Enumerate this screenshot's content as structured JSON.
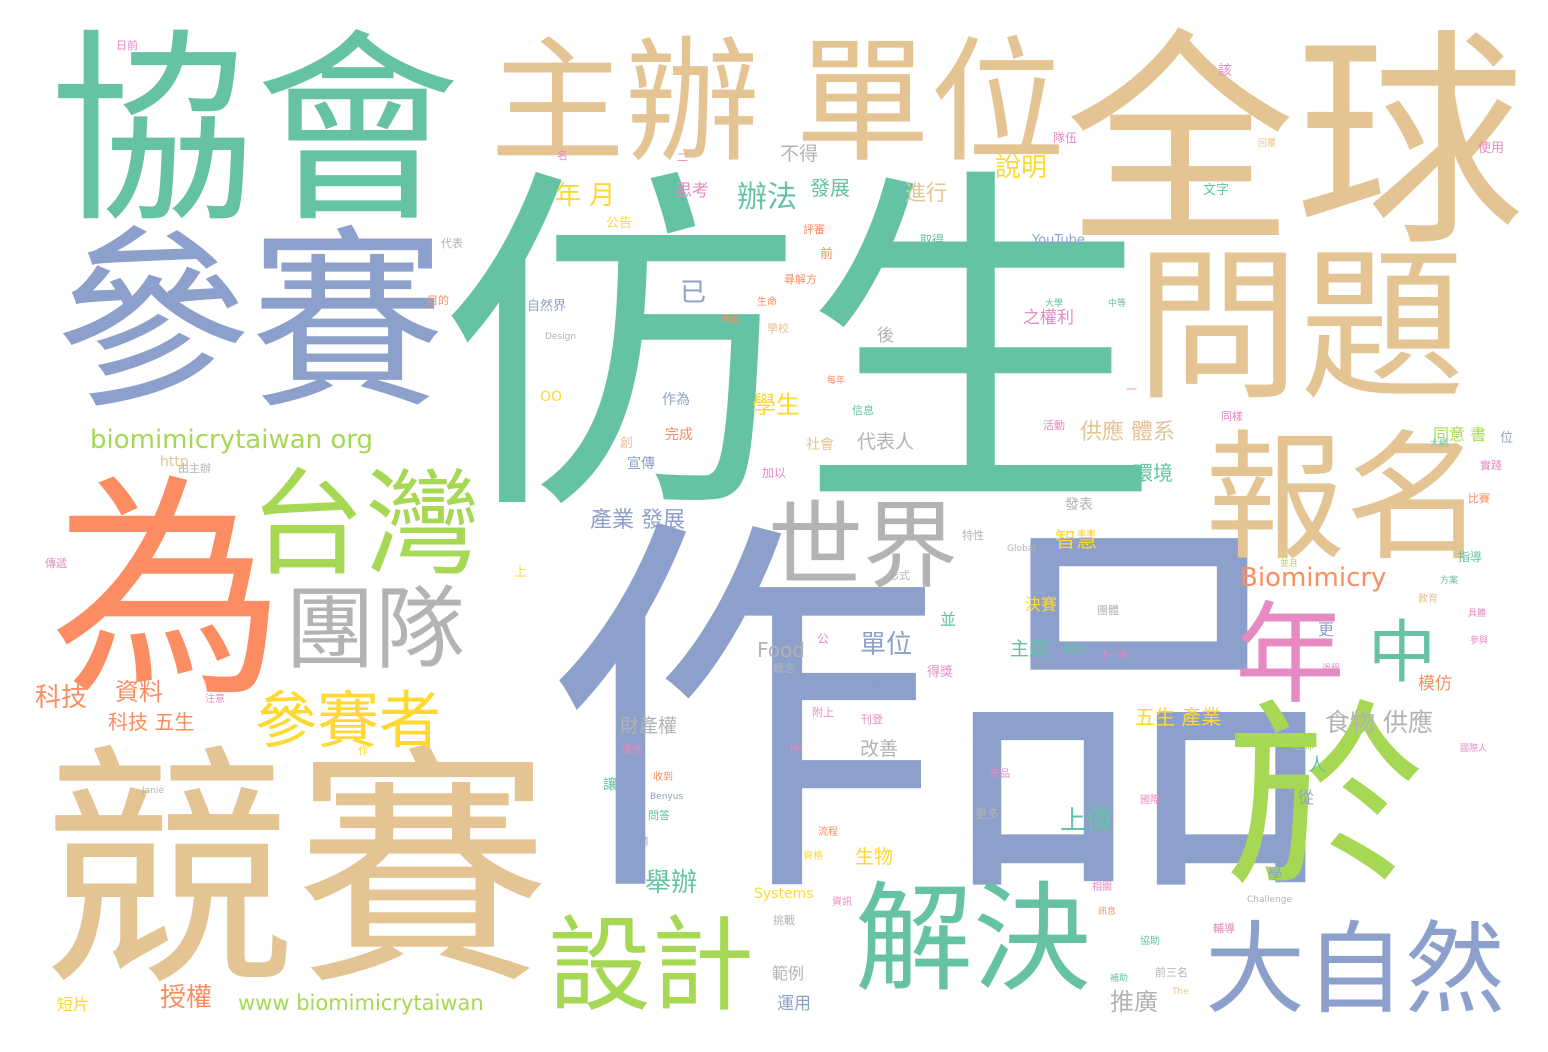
{
  "palette": {
    "green": "#66c2a5",
    "tan": "#e5c494",
    "blue": "#8da0cb",
    "orange": "#fc8d62",
    "lime": "#a6d854",
    "pink": "#e78ac3",
    "yellow": "#ffd92f",
    "gray": "#b3b3b3"
  },
  "words": [
    {
      "text": "仿生",
      "color": "green"
    },
    {
      "text": "作品",
      "color": "blue"
    },
    {
      "text": "全球",
      "color": "tan"
    },
    {
      "text": "協會",
      "color": "green"
    },
    {
      "text": "參賽",
      "color": "blue"
    },
    {
      "text": "競賽",
      "color": "tan"
    },
    {
      "text": "為",
      "color": "orange"
    },
    {
      "text": "主辦",
      "color": "tan"
    },
    {
      "text": "單位",
      "color": "tan"
    },
    {
      "text": "問題",
      "color": "tan"
    },
    {
      "text": "報名",
      "color": "tan"
    },
    {
      "text": "於",
      "color": "lime"
    },
    {
      "text": "台灣",
      "color": "lime"
    },
    {
      "text": "解決",
      "color": "green"
    },
    {
      "text": "大自然",
      "color": "blue"
    },
    {
      "text": "設計",
      "color": "lime"
    },
    {
      "text": "世界",
      "color": "gray"
    },
    {
      "text": "團隊",
      "color": "gray"
    },
    {
      "text": "年",
      "color": "pink"
    },
    {
      "text": "中",
      "color": "green"
    },
    {
      "text": "參賽者",
      "color": "yellow"
    },
    {
      "text": "biomimicrytaiwan org",
      "color": "lime"
    },
    {
      "text": "Biomimicry",
      "color": "orange"
    },
    {
      "text": "www biomimicrytaiwan",
      "color": "lime"
    },
    {
      "text": "說明",
      "color": "yellow"
    },
    {
      "text": "辦法",
      "color": "green"
    },
    {
      "text": "年 月",
      "color": "yellow"
    },
    {
      "text": "發展",
      "color": "green"
    },
    {
      "text": "進行",
      "color": "tan"
    },
    {
      "text": "不得",
      "color": "gray"
    },
    {
      "text": "思考",
      "color": "pink"
    },
    {
      "text": "已",
      "color": "blue"
    },
    {
      "text": "學生",
      "color": "yellow"
    },
    {
      "text": "產業 發展",
      "color": "blue"
    },
    {
      "text": "供應 體系",
      "color": "tan"
    },
    {
      "text": "智慧",
      "color": "yellow"
    },
    {
      "text": "環境",
      "color": "green"
    },
    {
      "text": "代表人",
      "color": "gray"
    },
    {
      "text": "之權利",
      "color": "pink"
    },
    {
      "text": "科技",
      "color": "orange"
    },
    {
      "text": "資料",
      "color": "orange"
    },
    {
      "text": "科技 五生",
      "color": "orange"
    },
    {
      "text": "單位",
      "color": "blue"
    },
    {
      "text": "Food",
      "color": "gray"
    },
    {
      "text": "食物 供應",
      "color": "gray"
    },
    {
      "text": "五生 產業",
      "color": "yellow"
    },
    {
      "text": "上傳",
      "color": "green"
    },
    {
      "text": "舉辦",
      "color": "green"
    },
    {
      "text": "生物",
      "color": "yellow"
    },
    {
      "text": "授權",
      "color": "orange"
    },
    {
      "text": "推廣",
      "color": "gray"
    },
    {
      "text": "財產權",
      "color": "gray"
    },
    {
      "text": "改善",
      "color": "gray"
    },
    {
      "text": "主題",
      "color": "green"
    },
    {
      "text": "決賽",
      "color": "yellow"
    },
    {
      "text": "模仿",
      "color": "orange"
    },
    {
      "text": "同意 書",
      "color": "lime"
    },
    {
      "text": "範例",
      "color": "gray"
    },
    {
      "text": "運用",
      "color": "blue"
    },
    {
      "text": "Systems",
      "color": "yellow"
    },
    {
      "text": "YouTube",
      "color": "blue"
    },
    {
      "text": "公告",
      "color": "yellow"
    },
    {
      "text": "作為",
      "color": "blue"
    },
    {
      "text": "宣傳",
      "color": "blue"
    },
    {
      "text": "完成",
      "color": "orange"
    },
    {
      "text": "社會",
      "color": "tan"
    },
    {
      "text": "後",
      "color": "gray"
    },
    {
      "text": "人",
      "color": "green"
    },
    {
      "text": "更",
      "color": "blue"
    },
    {
      "text": "並",
      "color": "green"
    },
    {
      "text": "從",
      "color": "blue"
    },
    {
      "text": "學",
      "color": "blue"
    },
    {
      "text": "文字",
      "color": "green"
    },
    {
      "text": "使用",
      "color": "pink"
    },
    {
      "text": "短片",
      "color": "yellow"
    },
    {
      "text": "由主辦",
      "color": "gray"
    },
    {
      "text": "日前",
      "color": "pink"
    },
    {
      "text": "該",
      "color": "pink"
    },
    {
      "text": "隊伍",
      "color": "pink"
    },
    {
      "text": "自然界",
      "color": "blue"
    },
    {
      "text": "生命",
      "color": "orange"
    },
    {
      "text": "學校",
      "color": "tan"
    },
    {
      "text": "晉級",
      "color": "orange"
    },
    {
      "text": "Global",
      "color": "gray"
    },
    {
      "text": "Institute",
      "color": "blue"
    },
    {
      "text": "Design",
      "color": "gray"
    },
    {
      "text": "Janie",
      "color": "gray"
    },
    {
      "text": "Benyus",
      "color": "blue"
    },
    {
      "text": "Challenge",
      "color": "gray"
    },
    {
      "text": "The",
      "color": "tan"
    },
    {
      "text": "OO",
      "color": "yellow"
    },
    {
      "text": "http",
      "color": "tan"
    },
    {
      "text": "更多",
      "color": "gray"
    },
    {
      "text": "輔導",
      "color": "pink"
    },
    {
      "text": "前三名",
      "color": "gray"
    },
    {
      "text": "國際",
      "color": "pink"
    },
    {
      "text": "讓",
      "color": "green"
    },
    {
      "text": "創",
      "color": "tan"
    },
    {
      "text": "前",
      "color": "orange"
    },
    {
      "text": "加以",
      "color": "pink"
    },
    {
      "text": "發表",
      "color": "gray"
    },
    {
      "text": "特性",
      "color": "gray"
    },
    {
      "text": "形式",
      "color": "gray"
    },
    {
      "text": "團體",
      "color": "gray"
    },
    {
      "text": "開始",
      "color": "green"
    },
    {
      "text": "下一項",
      "color": "pink"
    },
    {
      "text": "教育",
      "color": "tan"
    },
    {
      "text": "指導",
      "color": "green"
    },
    {
      "text": "實踐",
      "color": "pink"
    },
    {
      "text": "位",
      "color": "blue"
    },
    {
      "text": "取得",
      "color": "green"
    },
    {
      "text": "評審",
      "color": "orange"
    },
    {
      "text": "尋解方",
      "color": "orange"
    },
    {
      "text": "名",
      "color": "pink"
    },
    {
      "text": "目的",
      "color": "orange"
    },
    {
      "text": "傳遞",
      "color": "pink"
    },
    {
      "text": "作",
      "color": "yellow"
    },
    {
      "text": "上",
      "color": "yellow"
    },
    {
      "text": "注意",
      "color": "pink"
    },
    {
      "text": "老師",
      "color": "lime"
    },
    {
      "text": "提供",
      "color": "pink"
    },
    {
      "text": "產品",
      "color": "pink"
    },
    {
      "text": "相關",
      "color": "pink"
    },
    {
      "text": "協助",
      "color": "green"
    },
    {
      "text": "挑戰",
      "color": "gray"
    },
    {
      "text": "問答",
      "color": "green"
    },
    {
      "text": "官網",
      "color": "blue"
    },
    {
      "text": "收到",
      "color": "orange"
    },
    {
      "text": "流程",
      "color": "orange"
    },
    {
      "text": "資格",
      "color": "yellow"
    },
    {
      "text": "資訊",
      "color": "pink"
    },
    {
      "text": "得獎",
      "color": "pink"
    },
    {
      "text": "刊登",
      "color": "pink"
    },
    {
      "text": "附上",
      "color": "pink"
    },
    {
      "text": "一",
      "color": "pink"
    },
    {
      "text": "二",
      "color": "pink"
    },
    {
      "text": "並且",
      "color": "lime"
    },
    {
      "text": "回覆",
      "color": "tan"
    },
    {
      "text": "活動",
      "color": "pink"
    },
    {
      "text": "同樣",
      "color": "pink"
    },
    {
      "text": "大學",
      "color": "green"
    },
    {
      "text": "中等",
      "color": "green"
    },
    {
      "text": "信息",
      "color": "green"
    },
    {
      "text": "每年",
      "color": "orange"
    },
    {
      "text": "代表",
      "color": "gray"
    },
    {
      "text": "比賽",
      "color": "orange"
    },
    {
      "text": "大綱",
      "color": "green"
    },
    {
      "text": "參與",
      "color": "pink"
    },
    {
      "text": "具體",
      "color": "pink"
    },
    {
      "text": "方案",
      "color": "green"
    },
    {
      "text": "過程",
      "color": "pink"
    },
    {
      "text": "概念",
      "color": "gray"
    },
    {
      "text": "訊息",
      "color": "orange"
    },
    {
      "text": "補助",
      "color": "green"
    },
    {
      "text": "公",
      "color": "pink"
    },
    {
      "text": "Ms",
      "color": "pink"
    },
    {
      "text": "國際人",
      "color": "pink"
    }
  ]
}
